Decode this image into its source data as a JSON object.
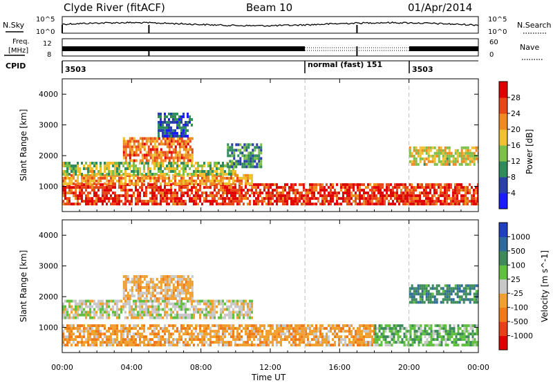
{
  "header": {
    "station": "Clyde River (fitACF)",
    "beam": "Beam 10",
    "date": "01/Apr/2014"
  },
  "status_panel": {
    "nsky_label": "N.Sky",
    "nsearch_label": "N.Search",
    "freq_label_1": "Freq.",
    "freq_label_2": "[MHz]",
    "nave_label": "Nave",
    "cpid_label": "CPID",
    "noise_ticks_left": [
      "10^5",
      "10^0"
    ],
    "noise_ticks_right": [
      "10^5",
      "10^0"
    ],
    "freq_ticks": [
      "12",
      "8"
    ],
    "nave_ticks": [
      "60",
      "0"
    ],
    "cpid_segments": [
      {
        "start_hour": 0,
        "end_hour": 14,
        "label": "3503"
      },
      {
        "start_hour": 14,
        "end_hour": 20,
        "label": "normal (fast) 151"
      },
      {
        "start_hour": 20,
        "end_hour": 24,
        "label": "3503"
      }
    ]
  },
  "x_axis": {
    "label": "Time UT",
    "ticks": [
      "00:00",
      "04:00",
      "08:00",
      "12:00",
      "16:00",
      "20:00",
      "00:00"
    ]
  },
  "chart_data": [
    {
      "type": "heatmap",
      "panel": "power",
      "ylabel": "Slant Range [km]",
      "ylim": [
        180,
        4500
      ],
      "y_ticks": [
        1000,
        2000,
        3000,
        4000
      ],
      "xlim_hours": [
        0,
        24
      ],
      "colorbar_label": "Power [dB]",
      "colorbar_ticks": [
        "4",
        "8",
        "12",
        "16",
        "20",
        "24",
        "28"
      ],
      "colorbar_range": [
        0,
        30
      ],
      "colors": [
        "#1a1aff",
        "#2a3fa8",
        "#2f8a5c",
        "#7cc04a",
        "#f0c030",
        "#f08a20",
        "#e84818",
        "#e00000"
      ],
      "description_note": "",
      "bands": [
        {
          "range_km": [
            450,
            1100
          ],
          "hours": [
            0,
            24
          ],
          "value_db": 26
        },
        {
          "range_km": [
            1100,
            1400
          ],
          "hours": [
            0,
            11
          ],
          "value_db": 20
        },
        {
          "range_km": [
            1400,
            1800
          ],
          "hours": [
            0,
            10
          ],
          "value_db": 14
        },
        {
          "range_km": [
            1800,
            2600
          ],
          "hours": [
            3.5,
            7.5
          ],
          "value_db": 22
        },
        {
          "range_km": [
            1700,
            2300
          ],
          "hours": [
            20,
            24
          ],
          "value_db": 16
        },
        {
          "range_km": [
            1600,
            2400
          ],
          "hours": [
            9.5,
            11.5
          ],
          "value_db": 10
        },
        {
          "range_km": [
            2600,
            3400
          ],
          "hours": [
            5.5,
            7.5
          ],
          "value_db": 6
        }
      ]
    },
    {
      "type": "heatmap",
      "panel": "velocity",
      "ylabel": "Slant Range [km]",
      "ylim": [
        180,
        4500
      ],
      "y_ticks": [
        1000,
        2000,
        3000,
        4000
      ],
      "xlim_hours": [
        0,
        24
      ],
      "colorbar_label": "Velocity [m s^-1]",
      "colorbar_ticks": [
        "1000",
        "500",
        "100",
        "25",
        "-25",
        "-100",
        "-500",
        "-1000"
      ],
      "colorbar_range": [
        -1200,
        1200
      ],
      "colors": [
        "#2040c0",
        "#2f6a9c",
        "#3d8a5a",
        "#60c040",
        "#c8c8c8",
        "#f0a030",
        "#f07a18",
        "#e84018",
        "#e00000"
      ],
      "bands": [
        {
          "range_km": [
            450,
            1100
          ],
          "hours": [
            0,
            18
          ],
          "value_ms": -300
        },
        {
          "range_km": [
            450,
            1100
          ],
          "hours": [
            18,
            24
          ],
          "value_ms": 300
        },
        {
          "range_km": [
            1300,
            1900
          ],
          "hours": [
            0,
            11
          ],
          "value_ms": 0
        },
        {
          "range_km": [
            1900,
            2700
          ],
          "hours": [
            3.5,
            7.5
          ],
          "value_ms": -200
        },
        {
          "range_km": [
            1800,
            2400
          ],
          "hours": [
            20,
            24
          ],
          "value_ms": 600
        }
      ]
    }
  ]
}
